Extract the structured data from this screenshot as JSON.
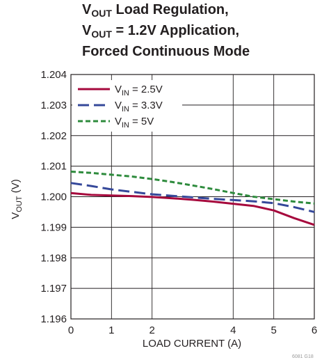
{
  "title_lines": [
    {
      "main": "V",
      "sub": "OUT",
      "rest": " Load Regulation,"
    },
    {
      "main": "V",
      "sub": "OUT",
      "rest": " = 1.2V Application,"
    },
    {
      "main": "",
      "sub": "",
      "rest": "Forced Continuous Mode"
    }
  ],
  "figure_code": "6081 G18",
  "chart_data": {
    "type": "line",
    "title": "VOUT Load Regulation, VOUT = 1.2V Application, Forced Continuous Mode",
    "xlabel": "LOAD CURRENT (A)",
    "ylabel": {
      "main": "V",
      "sub": "OUT",
      "rest": " (V)"
    },
    "xlim": [
      0,
      6
    ],
    "ylim": [
      1.196,
      1.204
    ],
    "x_ticks": [
      "0",
      "1",
      "2",
      "4",
      "5",
      "6"
    ],
    "x_tick_values": [
      0,
      1,
      2,
      4,
      5,
      6
    ],
    "x_tick_note": "axis tick labels as printed; vertical gridlines at labeled ticks",
    "y_ticks": [
      "1.196",
      "1.197",
      "1.198",
      "1.199",
      "1.200",
      "1.201",
      "1.202",
      "1.203",
      "1.204"
    ],
    "y_tick_values": [
      1.196,
      1.197,
      1.198,
      1.199,
      1.2,
      1.201,
      1.202,
      1.203,
      1.204
    ],
    "grid": true,
    "legend_position": "top-left",
    "series": [
      {
        "name": "VIN = 2.5V",
        "label_main": "V",
        "label_sub": "IN",
        "label_rest": " = 2.5V",
        "color": "#a6093d",
        "dash": "solid",
        "x": [
          0,
          0.5,
          1,
          1.5,
          2,
          2.5,
          3,
          3.5,
          4,
          4.5,
          5,
          5.5,
          6
        ],
        "y": [
          1.20012,
          1.20006,
          1.20004,
          1.20002,
          1.19999,
          1.19995,
          1.1999,
          1.19984,
          1.19977,
          1.1997,
          1.19955,
          1.1993,
          1.19908
        ]
      },
      {
        "name": "VIN = 3.3V",
        "label_main": "V",
        "label_sub": "IN",
        "label_rest": " = 3.3V",
        "color": "#35489a",
        "dash": "long-dash",
        "x": [
          0,
          0.5,
          1,
          1.5,
          2,
          2.5,
          3,
          3.5,
          4,
          4.5,
          5,
          5.5,
          6
        ],
        "y": [
          1.20045,
          1.20035,
          1.20024,
          1.20016,
          1.20008,
          1.20003,
          1.19998,
          1.19993,
          1.19989,
          1.19985,
          1.19979,
          1.19966,
          1.1995
        ]
      },
      {
        "name": "VIN = 5V",
        "label_main": "V",
        "label_sub": "IN",
        "label_rest": " = 5V",
        "color": "#2e8b3d",
        "dash": "short-dash",
        "x": [
          0,
          0.5,
          1,
          1.5,
          2,
          2.5,
          3,
          3.5,
          4,
          4.5,
          5,
          5.5,
          6
        ],
        "y": [
          1.20082,
          1.20078,
          1.20072,
          1.20066,
          1.20058,
          1.20048,
          1.20037,
          1.20025,
          1.20012,
          1.2,
          1.19992,
          1.19984,
          1.19978
        ]
      }
    ]
  }
}
